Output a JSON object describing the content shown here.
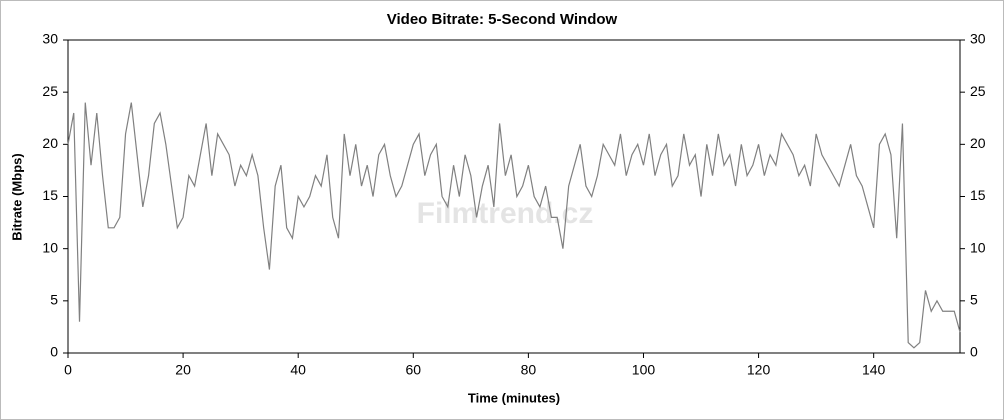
{
  "chart_data": {
    "type": "line",
    "title": "Video Bitrate: 5-Second Window",
    "x_label": "Time (minutes)",
    "y_label": "Bitrate (Mbps)",
    "watermark": "Filmtrend.cz",
    "color": "#808080",
    "xlim": [
      0,
      155
    ],
    "xticks": [
      0,
      20,
      40,
      60,
      80,
      100,
      120,
      140
    ],
    "ylim": [
      0,
      30
    ],
    "yticks": [
      0,
      5,
      10,
      15,
      20,
      25,
      30
    ],
    "y2lim": [
      0,
      30
    ],
    "y2ticks": [
      0,
      5,
      10,
      15,
      20,
      25,
      30
    ],
    "x": [
      0,
      1,
      2,
      3,
      4,
      5,
      6,
      7,
      8,
      9,
      10,
      11,
      12,
      13,
      14,
      15,
      16,
      17,
      18,
      19,
      20,
      21,
      22,
      23,
      24,
      25,
      26,
      27,
      28,
      29,
      30,
      31,
      32,
      33,
      34,
      35,
      36,
      37,
      38,
      39,
      40,
      41,
      42,
      43,
      44,
      45,
      46,
      47,
      48,
      49,
      50,
      51,
      52,
      53,
      54,
      55,
      56,
      57,
      58,
      59,
      60,
      61,
      62,
      63,
      64,
      65,
      66,
      67,
      68,
      69,
      70,
      71,
      72,
      73,
      74,
      75,
      76,
      77,
      78,
      79,
      80,
      81,
      82,
      83,
      84,
      85,
      86,
      87,
      88,
      89,
      90,
      91,
      92,
      93,
      94,
      95,
      96,
      97,
      98,
      99,
      100,
      101,
      102,
      103,
      104,
      105,
      106,
      107,
      108,
      109,
      110,
      111,
      112,
      113,
      114,
      115,
      116,
      117,
      118,
      119,
      120,
      121,
      122,
      123,
      124,
      125,
      126,
      127,
      128,
      129,
      130,
      131,
      132,
      133,
      134,
      135,
      136,
      137,
      138,
      139,
      140,
      141,
      142,
      143,
      144,
      145,
      146,
      147,
      148,
      149,
      150,
      151,
      152,
      153,
      154,
      155
    ],
    "values": [
      20,
      23,
      3,
      24,
      18,
      23,
      17,
      12,
      12,
      13,
      21,
      24,
      19,
      14,
      17,
      22,
      23,
      20,
      16,
      12,
      13,
      17,
      16,
      19,
      22,
      17,
      21,
      20,
      19,
      16,
      18,
      17,
      19,
      17,
      12,
      8,
      16,
      18,
      12,
      11,
      15,
      14,
      15,
      17,
      16,
      19,
      13,
      11,
      21,
      17,
      20,
      16,
      18,
      15,
      19,
      20,
      17,
      15,
      16,
      18,
      20,
      21,
      17,
      19,
      20,
      15,
      14,
      18,
      15,
      19,
      17,
      13,
      16,
      18,
      14,
      22,
      17,
      19,
      15,
      16,
      18,
      15,
      14,
      16,
      13,
      13,
      10,
      16,
      18,
      20,
      16,
      15,
      17,
      20,
      19,
      18,
      21,
      17,
      19,
      20,
      18,
      21,
      17,
      19,
      20,
      16,
      17,
      21,
      18,
      19,
      15,
      20,
      17,
      21,
      18,
      19,
      16,
      20,
      17,
      18,
      20,
      17,
      19,
      18,
      21,
      20,
      19,
      17,
      18,
      16,
      21,
      19,
      18,
      17,
      16,
      18,
      20,
      17,
      16,
      14,
      12,
      20,
      21,
      19,
      11,
      22,
      1,
      0.5,
      1,
      6,
      4,
      5,
      4,
      4,
      4,
      2
    ]
  }
}
